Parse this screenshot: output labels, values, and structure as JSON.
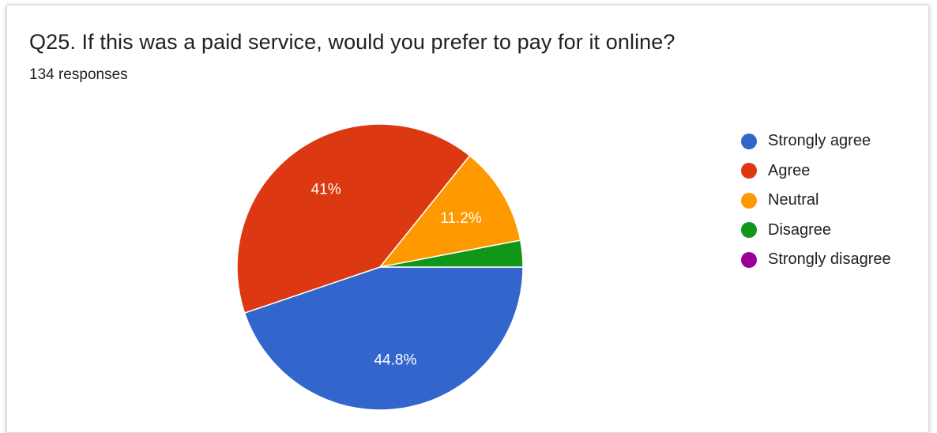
{
  "header": {
    "title": "Q25. If this was a paid service, would you prefer to pay for it online?",
    "subtitle": "134 responses"
  },
  "chart_data": {
    "type": "pie",
    "title": "Q25. If this was a paid service, would you prefer to pay for it online?",
    "subtitle": "134 responses",
    "legend_position": "right",
    "slices": [
      {
        "label": "Strongly agree",
        "value": 44.8,
        "display": "44.8%",
        "color": "#3366cc"
      },
      {
        "label": "Agree",
        "value": 41.0,
        "display": "41%",
        "color": "#dc3912"
      },
      {
        "label": "Neutral",
        "value": 11.2,
        "display": "11.2%",
        "color": "#ff9900"
      },
      {
        "label": "Disagree",
        "value": 3.0,
        "display": "",
        "color": "#109618"
      },
      {
        "label": "Strongly disagree",
        "value": 0.0,
        "display": "",
        "color": "#990099"
      }
    ]
  }
}
